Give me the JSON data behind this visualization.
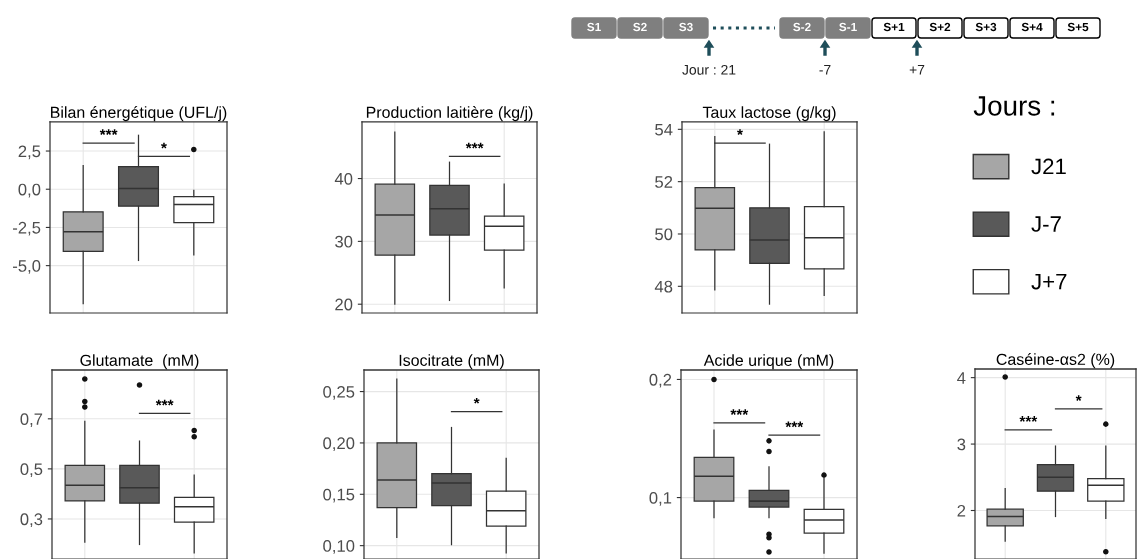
{
  "chart_data": [
    {
      "type": "other",
      "categories": [
        "S1",
        "S2",
        "S3",
        "S-2",
        "S-1",
        "S+1",
        "S+2",
        "S+3",
        "S+4",
        "S+5"
      ],
      "colors": [
        "#7f7f7f",
        "#7f7f7f",
        "#7f7f7f",
        "#7f7f7f",
        "#7f7f7f",
        "#ffffff",
        "#ffffff",
        "#ffffff",
        "#ffffff",
        "#ffffff"
      ],
      "annotations": [
        "Jour : 21",
        "-7",
        "+7"
      ]
    },
    {
      "type": "box",
      "title": "Bilan énergétique (UFL/j)",
      "categories": [
        null
      ],
      "ylim": [
        -8.1,
        4.4
      ],
      "yticks": [
        {
          "value": -5,
          "label": "-5,0"
        },
        {
          "value": -2.5,
          "label": "-2,5"
        },
        {
          "value": 0,
          "label": "0,0"
        },
        {
          "value": 2.5,
          "label": "2,5"
        }
      ],
      "grid": true,
      "tick_labels": "y",
      "legend": false,
      "series": [
        {
          "color": "#a6a6a6",
          "boxes": [
            {
              "low": -7.49,
              "q1": -4.06,
              "median": -2.78,
              "q3": -1.48,
              "high": 1.55
            }
          ]
        },
        {
          "color": "#595959",
          "boxes": [
            {
              "low": -4.66,
              "q1": -1.11,
              "median": 0.05,
              "q3": 1.48,
              "high": 3.53
            }
          ]
        },
        {
          "color": "#ffffff",
          "boxes": [
            {
              "low": -4.29,
              "q1": -2.18,
              "median": -1.0,
              "q3": -0.49,
              "high": -0.07,
              "outliers": [
                2.6
              ]
            }
          ]
        }
      ],
      "annotations": [
        "***",
        "*"
      ]
    },
    {
      "type": "box",
      "title": "Production laitière (kg/j)",
      "categories": [
        null
      ],
      "ylim": [
        18.6,
        49.0
      ],
      "yticks": [
        20,
        30,
        40
      ],
      "grid": true,
      "tick_labels": "y",
      "legend": false,
      "series": [
        {
          "color": "#a6a6a6",
          "boxes": [
            {
              "low": 20.0,
              "q1": 27.8,
              "median": 34.2,
              "q3": 39.1,
              "high": 47.4
            }
          ]
        },
        {
          "color": "#595959",
          "boxes": [
            {
              "low": 20.6,
              "q1": 31.0,
              "median": 35.2,
              "q3": 38.9,
              "high": 42.6
            }
          ]
        },
        {
          "color": "#ffffff",
          "boxes": [
            {
              "low": 22.6,
              "q1": 28.6,
              "median": 32.4,
              "q3": 34.0,
              "high": 39.1
            }
          ]
        }
      ],
      "annotations": [
        "***"
      ]
    },
    {
      "type": "box",
      "title": "Taux lactose (g/kg)",
      "categories": [
        null
      ],
      "ylim": [
        46.98,
        54.28
      ],
      "yticks": [
        48,
        50,
        52,
        54
      ],
      "grid": true,
      "tick_labels": "y",
      "legend": "right",
      "legend_title": "Jours :",
      "series": [
        {
          "name": "J21",
          "color": "#a6a6a6",
          "boxes": [
            {
              "low": 47.86,
              "q1": 49.39,
              "median": 50.98,
              "q3": 51.77,
              "high": 53.72
            }
          ]
        },
        {
          "name": "J-7",
          "color": "#595959",
          "boxes": [
            {
              "low": 47.32,
              "q1": 48.88,
              "median": 49.77,
              "q3": 51.0,
              "high": 53.43
            }
          ]
        },
        {
          "name": "J+7",
          "color": "#ffffff",
          "boxes": [
            {
              "low": 47.65,
              "q1": 48.67,
              "median": 49.86,
              "q3": 51.05,
              "high": 53.9
            }
          ]
        }
      ],
      "annotations": [
        "*"
      ]
    },
    {
      "type": "box",
      "title": "Glutamate  (mM)",
      "categories": [
        null
      ],
      "ylim": [
        0.14,
        0.895
      ],
      "yticks": [
        {
          "value": 0.3,
          "label": "0,3"
        },
        {
          "value": 0.5,
          "label": "0,5"
        },
        {
          "value": 0.7,
          "label": "0,7"
        }
      ],
      "grid": true,
      "tick_labels": "y",
      "legend": false,
      "series": [
        {
          "color": "#a6a6a6",
          "boxes": [
            {
              "low": 0.207,
              "q1": 0.372,
              "median": 0.435,
              "q3": 0.514,
              "high": 0.69,
              "outliers": [
                0.859,
                0.769,
                0.747
              ]
            }
          ]
        },
        {
          "color": "#595959",
          "boxes": [
            {
              "low": 0.198,
              "q1": 0.363,
              "median": 0.425,
              "q3": 0.514,
              "high": 0.611,
              "outliers": [
                0.835
              ]
            }
          ]
        },
        {
          "color": "#ffffff",
          "boxes": [
            {
              "low": 0.164,
              "q1": 0.287,
              "median": 0.349,
              "q3": 0.386,
              "high": 0.475,
              "outliers": [
                0.653,
                0.628
              ]
            }
          ]
        }
      ],
      "annotations": [
        "***"
      ]
    },
    {
      "type": "box",
      "title": "Isocitrate (mM)",
      "categories": [
        null
      ],
      "ylim": [
        0.087,
        0.271
      ],
      "yticks": [
        {
          "value": 0.1,
          "label": "0,10"
        },
        {
          "value": 0.15,
          "label": "0,15"
        },
        {
          "value": 0.2,
          "label": "0,20"
        },
        {
          "value": 0.25,
          "label": "0,25"
        }
      ],
      "grid": true,
      "tick_labels": "y",
      "legend": false,
      "series": [
        {
          "color": "#a6a6a6",
          "boxes": [
            {
              "low": 0.108,
              "q1": 0.137,
              "median": 0.164,
              "q3": 0.2,
              "high": 0.262
            }
          ]
        },
        {
          "color": "#595959",
          "boxes": [
            {
              "low": 0.101,
              "q1": 0.139,
              "median": 0.161,
              "q3": 0.17,
              "high": 0.215
            }
          ]
        },
        {
          "color": "#ffffff",
          "boxes": [
            {
              "low": 0.093,
              "q1": 0.119,
              "median": 0.134,
              "q3": 0.153,
              "high": 0.185
            }
          ]
        }
      ],
      "annotations": [
        "*"
      ]
    },
    {
      "type": "box",
      "title": "Acide urique (mM)",
      "categories": [
        null
      ],
      "ylim": [
        0.048,
        0.208
      ],
      "yticks": [
        {
          "value": 0.1,
          "label": "0,1"
        },
        {
          "value": 0.2,
          "label": "0,2"
        }
      ],
      "grid": true,
      "tick_labels": "y",
      "legend": false,
      "series": [
        {
          "color": "#a6a6a6",
          "boxes": [
            {
              "low": 0.083,
              "q1": 0.097,
              "median": 0.118,
              "q3": 0.134,
              "high": 0.157,
              "outliers": [
                0.2
              ]
            }
          ]
        },
        {
          "color": "#595959",
          "boxes": [
            {
              "low": 0.083,
              "q1": 0.092,
              "median": 0.097,
              "q3": 0.106,
              "high": 0.126,
              "outliers": [
                0.148,
                0.139,
                0.069,
                0.066,
                0.054
              ]
            }
          ]
        },
        {
          "color": "#ffffff",
          "boxes": [
            {
              "low": 0.053,
              "q1": 0.07,
              "median": 0.081,
              "q3": 0.09,
              "high": 0.116,
              "outliers": [
                0.119
              ]
            }
          ]
        }
      ],
      "annotations": [
        "***",
        "***"
      ]
    },
    {
      "type": "box",
      "title": "Caséine-αs2 (%)",
      "categories": [
        null
      ],
      "ylim": [
        1.27,
        4.13
      ],
      "yticks": [
        2,
        3,
        4
      ],
      "grid": true,
      "tick_labels": "y",
      "legend": false,
      "series": [
        {
          "color": "#a6a6a6",
          "boxes": [
            {
              "low": 1.54,
              "q1": 1.77,
              "median": 1.91,
              "q3": 2.02,
              "high": 2.33,
              "outliers": [
                4.01
              ]
            }
          ]
        },
        {
          "color": "#595959",
          "boxes": [
            {
              "low": 1.91,
              "q1": 2.29,
              "median": 2.5,
              "q3": 2.69,
              "high": 2.97
            }
          ]
        },
        {
          "color": "#ffffff",
          "boxes": [
            {
              "low": 1.88,
              "q1": 2.14,
              "median": 2.38,
              "q3": 2.48,
              "high": 2.97,
              "outliers": [
                3.3,
                1.38
              ]
            }
          ]
        }
      ],
      "annotations": [
        "***",
        "*"
      ]
    }
  ]
}
